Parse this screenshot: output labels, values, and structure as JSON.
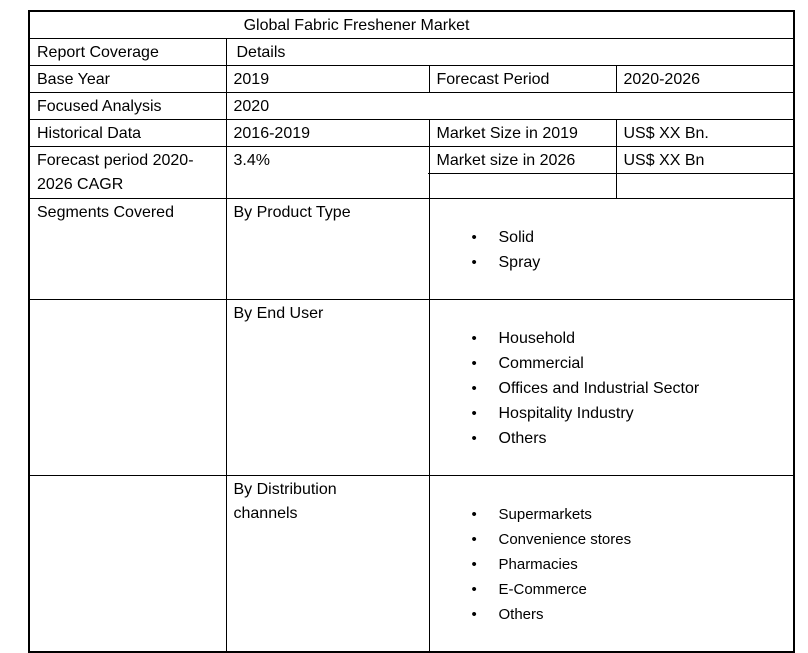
{
  "title": "Global Fabric Freshener Market",
  "coverage": {
    "report_coverage_label": "Report Coverage",
    "details_label": "Details",
    "base_year_label": "Base Year",
    "base_year_value": "2019",
    "forecast_period_label": "Forecast Period",
    "forecast_period_value": "2020-2026",
    "focused_analysis_label": "Focused Analysis",
    "focused_analysis_value": "2020",
    "historical_data_label": "Historical Data",
    "historical_data_value": "2016-2019",
    "market_size_2019_label": "Market Size in 2019",
    "market_size_2019_value": "US$ XX Bn.",
    "cagr_label": "Forecast period 2020-2026 CAGR",
    "cagr_value": "3.4%",
    "market_size_2026_label": "Market size in 2026",
    "market_size_2026_value": "US$ XX Bn",
    "segments_covered_label": "Segments Covered"
  },
  "segments": [
    {
      "category": "By Product Type",
      "items": [
        "Solid",
        "Spray"
      ]
    },
    {
      "category": "By End User",
      "items": [
        "Household",
        "Commercial",
        "Offices and Industrial Sector",
        "Hospitality Industry",
        "Others"
      ]
    },
    {
      "category": "By Distribution\nchannels",
      "items": [
        "Supermarkets",
        "Convenience stores",
        "Pharmacies",
        "E-Commerce",
        "Others"
      ]
    }
  ],
  "icons": {
    "bullet": "•"
  },
  "colors": {
    "border": "#000000",
    "text": "#000000",
    "background": "#ffffff"
  }
}
